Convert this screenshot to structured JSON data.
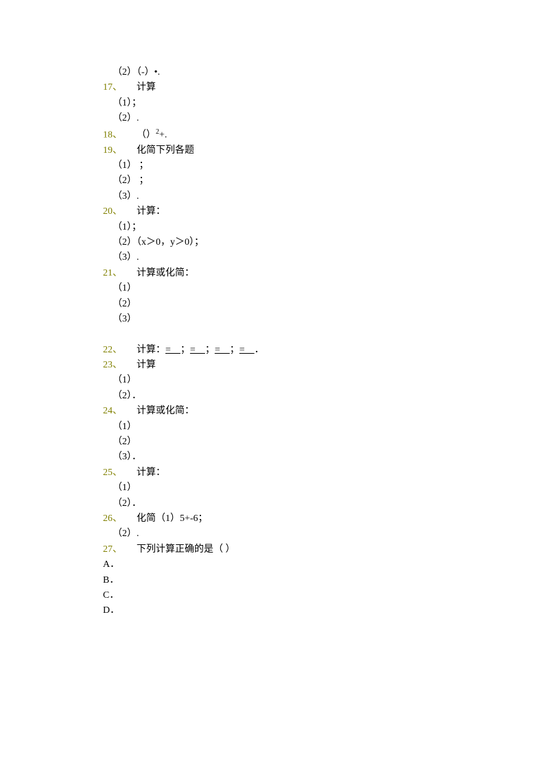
{
  "problems": [
    {
      "pre_sub": "（2）（-）•.",
      "number": "17、",
      "title": "计算",
      "subs": [
        "（1）；",
        "（2）."
      ]
    },
    {
      "number": "18、",
      "title": "（）",
      "sup": "2",
      "after_sup": "+."
    },
    {
      "number": "19、",
      "title": "化简下列各题",
      "subs": [
        "（1） ；",
        "（2） ；",
        "（3）."
      ]
    },
    {
      "number": "20、",
      "title": "计算：",
      "subs": [
        "（1）；",
        "（2）（x＞0，y＞0）；",
        "（3）."
      ]
    },
    {
      "number": "21、",
      "title": "计算或化简：",
      "subs": [
        "（1）",
        "（2）",
        "（3）"
      ],
      "blank_after": true
    },
    {
      "number": "22、",
      "title": "计算：",
      "blanks": true
    },
    {
      "number": "23、",
      "title": "计算",
      "subs": [
        "（1）",
        "（2）．"
      ]
    },
    {
      "number": "24、",
      "title": "计算或化简：",
      "subs": [
        "（1）",
        "（2）",
        "（3）．"
      ]
    },
    {
      "number": "25、",
      "title": "计算：",
      "subs": [
        "（1）",
        "（2）．"
      ]
    },
    {
      "number": "26、",
      "title": "化简（1）5+-6；",
      "subs": [
        "（2）."
      ]
    },
    {
      "number": "27、",
      "title": "下列计算正确的是（ ）",
      "options": [
        "A．",
        "B．",
        "C．",
        "D．"
      ]
    }
  ],
  "colors": {
    "number_color": "#808000",
    "text_color": "#000000",
    "background": "#ffffff"
  }
}
